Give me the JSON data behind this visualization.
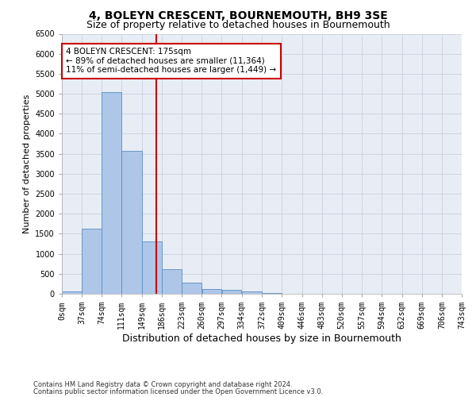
{
  "title": "4, BOLEYN CRESCENT, BOURNEMOUTH, BH9 3SE",
  "subtitle": "Size of property relative to detached houses in Bournemouth",
  "xlabel": "Distribution of detached houses by size in Bournemouth",
  "ylabel": "Number of detached properties",
  "footer_line1": "Contains HM Land Registry data © Crown copyright and database right 2024.",
  "footer_line2": "Contains public sector information licensed under the Open Government Licence v3.0.",
  "bar_left_edges": [
    0,
    37,
    74,
    111,
    149,
    186,
    223,
    260,
    297,
    334,
    372,
    409,
    446,
    483,
    520,
    557,
    594,
    632,
    669,
    706
  ],
  "bar_widths": [
    37,
    37,
    37,
    38,
    37,
    37,
    37,
    37,
    37,
    38,
    37,
    37,
    37,
    37,
    37,
    37,
    38,
    37,
    37,
    37
  ],
  "bar_heights": [
    50,
    1620,
    5050,
    3570,
    1310,
    620,
    270,
    120,
    100,
    60,
    20,
    0,
    0,
    0,
    0,
    0,
    0,
    0,
    0,
    0
  ],
  "bar_color": "#aec6e8",
  "bar_edge_color": "#5a8fc2",
  "vline_x": 175,
  "vline_color": "#cc0000",
  "annotation_text": "4 BOLEYN CRESCENT: 175sqm\n← 89% of detached houses are smaller (11,364)\n11% of semi-detached houses are larger (1,449) →",
  "annotation_box_color": "#ffffff",
  "annotation_box_edge_color": "#cc0000",
  "xlim": [
    0,
    743
  ],
  "ylim": [
    0,
    6500
  ],
  "yticks": [
    0,
    500,
    1000,
    1500,
    2000,
    2500,
    3000,
    3500,
    4000,
    4500,
    5000,
    5500,
    6000,
    6500
  ],
  "xtick_labels": [
    "0sqm",
    "37sqm",
    "74sqm",
    "111sqm",
    "149sqm",
    "186sqm",
    "223sqm",
    "260sqm",
    "297sqm",
    "334sqm",
    "372sqm",
    "409sqm",
    "446sqm",
    "483sqm",
    "520sqm",
    "557sqm",
    "594sqm",
    "632sqm",
    "669sqm",
    "706sqm",
    "743sqm"
  ],
  "xtick_positions": [
    0,
    37,
    74,
    111,
    149,
    186,
    223,
    260,
    297,
    334,
    372,
    409,
    446,
    483,
    520,
    557,
    594,
    632,
    669,
    706,
    743
  ],
  "grid_color": "#cdd5e3",
  "bg_color": "#e8edf5",
  "title_fontsize": 10,
  "subtitle_fontsize": 9,
  "tick_fontsize": 7,
  "ylabel_fontsize": 8,
  "xlabel_fontsize": 9,
  "annotation_fontsize": 7.5,
  "footer_fontsize": 6
}
